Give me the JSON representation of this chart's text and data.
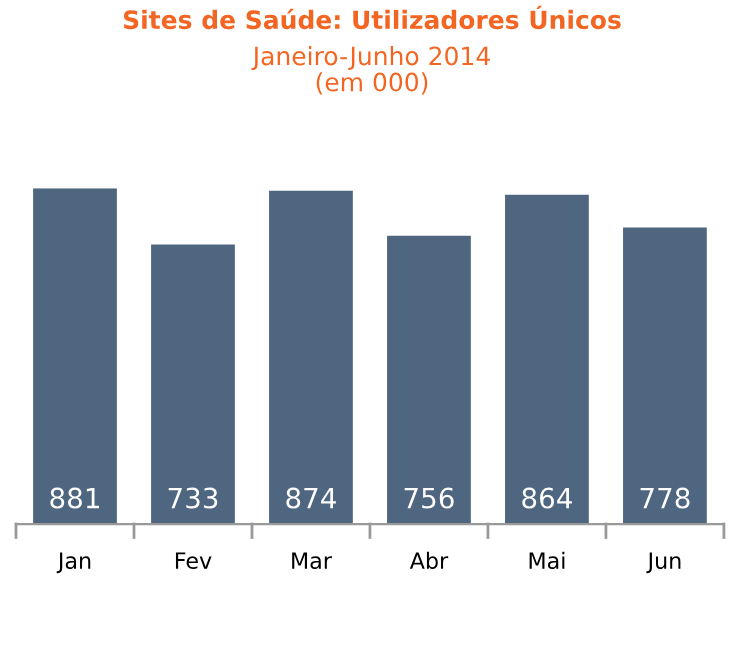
{
  "chart_data": {
    "type": "bar",
    "title": "Sites de Saúde: Utilizadores Únicos",
    "subtitle": "Janeiro-Junho 2014\n(em 000)",
    "categories": [
      "Jan",
      "Fev",
      "Mar",
      "Abr",
      "Mai",
      "Jun"
    ],
    "values": [
      881,
      733,
      874,
      756,
      864,
      778
    ],
    "color": "#4f6680",
    "data_labels": true,
    "grid": false,
    "legend": false
  }
}
